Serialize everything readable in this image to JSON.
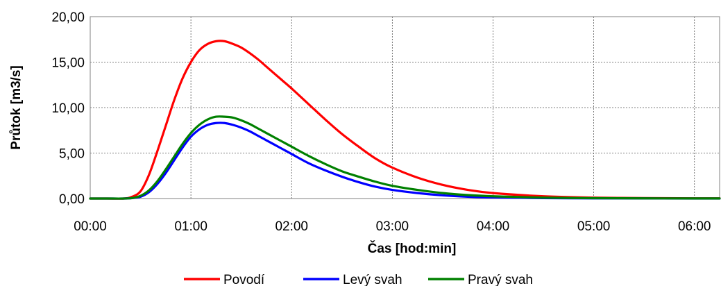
{
  "chart_data": {
    "type": "line",
    "xlabel": "Čas [hod:min]",
    "ylabel": "Průtok [m3/s]",
    "xlim": [
      0,
      375
    ],
    "ylim": [
      0,
      20
    ],
    "grid": true,
    "legend_position": "bottom",
    "x_ticks": [
      {
        "value": 0,
        "label": "00:00"
      },
      {
        "value": 60,
        "label": "01:00"
      },
      {
        "value": 120,
        "label": "02:00"
      },
      {
        "value": 180,
        "label": "03:00"
      },
      {
        "value": 240,
        "label": "04:00"
      },
      {
        "value": 300,
        "label": "05:00"
      },
      {
        "value": 360,
        "label": "06:00"
      }
    ],
    "y_ticks": [
      {
        "value": 0,
        "label": "0,00"
      },
      {
        "value": 5,
        "label": "5,00"
      },
      {
        "value": 10,
        "label": "10,00"
      },
      {
        "value": 15,
        "label": "15,00"
      },
      {
        "value": 20,
        "label": "20,00"
      }
    ],
    "x": [
      0,
      10,
      20,
      25,
      30,
      35,
      40,
      45,
      50,
      55,
      60,
      65,
      70,
      75,
      80,
      85,
      90,
      95,
      100,
      105,
      110,
      115,
      120,
      130,
      140,
      150,
      160,
      170,
      180,
      195,
      210,
      225,
      240,
      270,
      300,
      330,
      360,
      375
    ],
    "series": [
      {
        "name": "Povodí",
        "color": "#ff0000",
        "values": [
          0,
          0,
          0,
          0.2,
          0.8,
          2.6,
          5.2,
          8.0,
          10.8,
          13.2,
          15.0,
          16.3,
          17.0,
          17.3,
          17.3,
          17.0,
          16.6,
          16.0,
          15.3,
          14.5,
          13.7,
          12.9,
          12.1,
          10.4,
          8.7,
          7.1,
          5.7,
          4.4,
          3.4,
          2.3,
          1.5,
          0.95,
          0.6,
          0.25,
          0.1,
          0.05,
          0.02,
          0.02
        ]
      },
      {
        "name": "Levý svah",
        "color": "#0000ff",
        "values": [
          0,
          0,
          0,
          0.05,
          0.2,
          0.7,
          1.6,
          2.8,
          4.2,
          5.6,
          6.8,
          7.6,
          8.1,
          8.3,
          8.3,
          8.1,
          7.8,
          7.4,
          6.9,
          6.4,
          5.9,
          5.4,
          4.9,
          3.9,
          3.1,
          2.4,
          1.8,
          1.3,
          0.95,
          0.6,
          0.35,
          0.2,
          0.12,
          0.05,
          0.02,
          0.01,
          0,
          0
        ]
      },
      {
        "name": "Pravý svah",
        "color": "#008000",
        "values": [
          0,
          0,
          0,
          0.05,
          0.3,
          0.9,
          1.9,
          3.2,
          4.6,
          6.0,
          7.2,
          8.1,
          8.7,
          9.0,
          9.0,
          8.9,
          8.6,
          8.2,
          7.7,
          7.2,
          6.7,
          6.2,
          5.7,
          4.7,
          3.8,
          3.0,
          2.4,
          1.85,
          1.4,
          0.95,
          0.6,
          0.38,
          0.25,
          0.1,
          0.04,
          0.02,
          0.01,
          0.01
        ]
      }
    ]
  }
}
